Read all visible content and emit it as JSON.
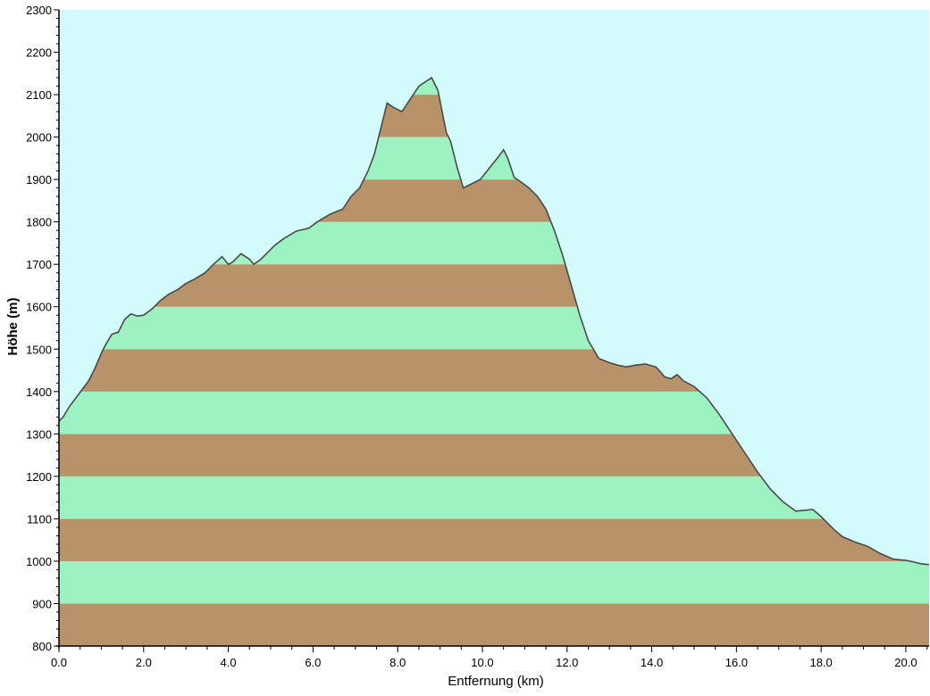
{
  "chart_data": {
    "type": "area",
    "title": "",
    "xlabel": "Entfernung   (km)",
    "ylabel": "Höhe (m)",
    "xlim": [
      0,
      20.55
    ],
    "ylim": [
      800,
      2300
    ],
    "x_ticks": [
      0,
      2,
      4,
      6,
      8,
      10,
      12,
      14,
      16,
      18,
      20
    ],
    "x_tick_labels": [
      "0.0",
      "2.0",
      "4.0",
      "6.0",
      "8.0",
      "10.0",
      "12.0",
      "14.0",
      "16.0",
      "18.0",
      "20.0"
    ],
    "y_ticks": [
      800,
      900,
      1000,
      1100,
      1200,
      1300,
      1400,
      1500,
      1600,
      1700,
      1800,
      1900,
      2000,
      2100,
      2200,
      2300
    ],
    "y_tick_labels": [
      "800",
      "900",
      "1000",
      "1100",
      "1200",
      "1300",
      "1400",
      "1500",
      "1600",
      "1700",
      "1800",
      "1900",
      "2000",
      "2100",
      "2200",
      "2300"
    ],
    "grid": false,
    "band_colors": [
      "#b8936a",
      "#9df2c2"
    ],
    "sky_color": "#d4fbfb",
    "line_color": "#4a4a4a",
    "series": [
      {
        "x": [
          0.0,
          0.1,
          0.25,
          0.4,
          0.55,
          0.7,
          0.85,
          1.0,
          1.1,
          1.25,
          1.4,
          1.55,
          1.7,
          1.85,
          2.0,
          2.2,
          2.4,
          2.6,
          2.8,
          3.0,
          3.2,
          3.45,
          3.65,
          3.85,
          4.0,
          4.1,
          4.3,
          4.5,
          4.6,
          4.75,
          4.9,
          5.1,
          5.3,
          5.6,
          5.9,
          6.1,
          6.4,
          6.7,
          6.9,
          7.1,
          7.3,
          7.45,
          7.6,
          7.75,
          7.9,
          8.1,
          8.3,
          8.5,
          8.65,
          8.8,
          8.95,
          9.05,
          9.15,
          9.25,
          9.4,
          9.55,
          9.75,
          9.95,
          10.15,
          10.35,
          10.5,
          10.6,
          10.75,
          10.9,
          11.1,
          11.3,
          11.5,
          11.7,
          11.9,
          12.1,
          12.3,
          12.5,
          12.75,
          13.0,
          13.2,
          13.4,
          13.6,
          13.85,
          14.1,
          14.3,
          14.45,
          14.6,
          14.75,
          15.0,
          15.3,
          15.6,
          15.9,
          16.2,
          16.5,
          16.8,
          17.1,
          17.4,
          17.6,
          17.8,
          18.0,
          18.15,
          18.3,
          18.5,
          18.8,
          19.1,
          19.4,
          19.7,
          20.0,
          20.2,
          20.35,
          20.55
        ],
        "y": [
          1330,
          1340,
          1365,
          1385,
          1405,
          1425,
          1455,
          1490,
          1510,
          1535,
          1540,
          1570,
          1583,
          1578,
          1580,
          1595,
          1615,
          1630,
          1640,
          1655,
          1665,
          1680,
          1700,
          1718,
          1700,
          1705,
          1725,
          1712,
          1700,
          1710,
          1725,
          1745,
          1760,
          1778,
          1785,
          1800,
          1818,
          1830,
          1860,
          1880,
          1920,
          1960,
          2020,
          2080,
          2070,
          2060,
          2090,
          2120,
          2130,
          2140,
          2110,
          2060,
          2010,
          1990,
          1930,
          1880,
          1890,
          1900,
          1925,
          1950,
          1970,
          1950,
          1905,
          1895,
          1880,
          1860,
          1830,
          1780,
          1720,
          1650,
          1580,
          1520,
          1478,
          1468,
          1462,
          1458,
          1462,
          1465,
          1458,
          1435,
          1430,
          1440,
          1425,
          1412,
          1385,
          1345,
          1300,
          1255,
          1210,
          1170,
          1140,
          1118,
          1120,
          1122,
          1105,
          1090,
          1075,
          1058,
          1045,
          1035,
          1018,
          1005,
          1002,
          998,
          994,
          992
        ]
      }
    ]
  }
}
